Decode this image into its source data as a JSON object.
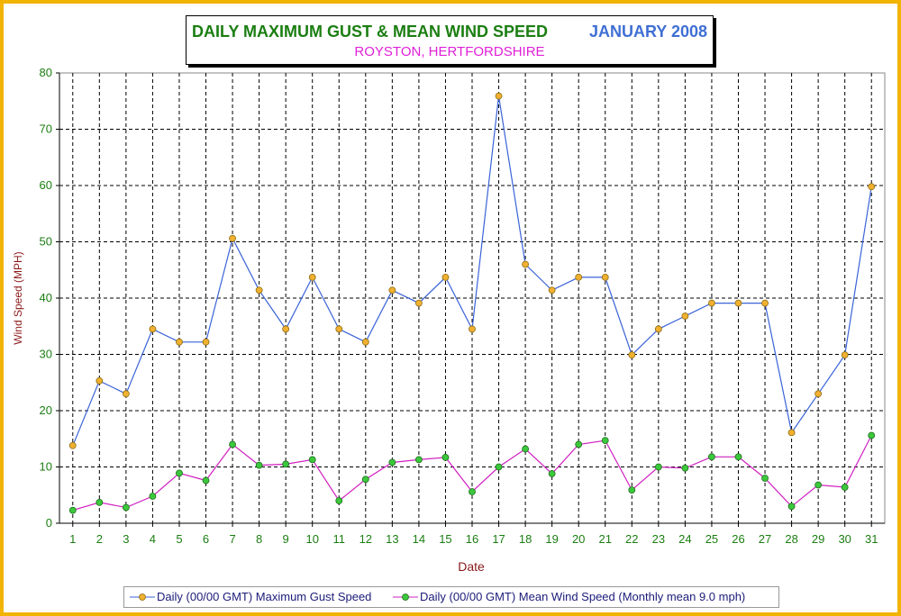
{
  "title": {
    "main": "DAILY MAXIMUM GUST & MEAN WIND SPEED",
    "period": "JANUARY 2008",
    "subtitle": "ROYSTON, HERTFORDSHIRE"
  },
  "colors": {
    "border": "#f2b400",
    "title_main": "#1b7e12",
    "title_period": "#3f6fd4",
    "subtitle": "#e020d8",
    "axis_label": "#8b1a1a",
    "tick_label": "#1b7e12",
    "gust_line": "#3a63d8",
    "gust_marker": "#f0b030",
    "mean_line": "#d020c0",
    "mean_marker": "#3cc83c"
  },
  "chart_data": {
    "type": "line",
    "xlabel": "Date",
    "ylabel": "Wind Speed (MPH)",
    "ylim": [
      0,
      80
    ],
    "yticks": [
      0,
      10,
      20,
      30,
      40,
      50,
      60,
      70,
      80
    ],
    "grid": true,
    "legend_position": "bottom",
    "x": [
      1,
      2,
      3,
      4,
      5,
      6,
      7,
      8,
      9,
      10,
      11,
      12,
      13,
      14,
      15,
      16,
      17,
      18,
      19,
      20,
      21,
      22,
      23,
      24,
      25,
      26,
      27,
      28,
      29,
      30,
      31
    ],
    "series": [
      {
        "name": "Daily (00/00 GMT) Maximum Gust Speed",
        "values": [
          13.8,
          25.3,
          23.0,
          34.5,
          32.2,
          32.2,
          50.6,
          41.4,
          34.5,
          43.7,
          34.5,
          32.2,
          41.4,
          39.1,
          43.7,
          34.5,
          75.9,
          46.0,
          41.4,
          43.7,
          43.7,
          29.9,
          34.5,
          36.8,
          39.1,
          39.1,
          39.1,
          16.1,
          23.0,
          29.9,
          59.8
        ]
      },
      {
        "name": "Daily (00/00 GMT) Mean Wind Speed (Monthly mean 9.0 mph)",
        "values": [
          2.3,
          3.7,
          2.8,
          4.8,
          8.9,
          7.6,
          14.0,
          10.3,
          10.5,
          11.3,
          4.0,
          7.8,
          10.8,
          11.3,
          11.7,
          5.6,
          10.0,
          13.2,
          8.8,
          14.0,
          14.7,
          5.9,
          10.0,
          9.8,
          11.8,
          11.8,
          8.0,
          3.0,
          6.8,
          6.4,
          15.6
        ]
      }
    ]
  }
}
